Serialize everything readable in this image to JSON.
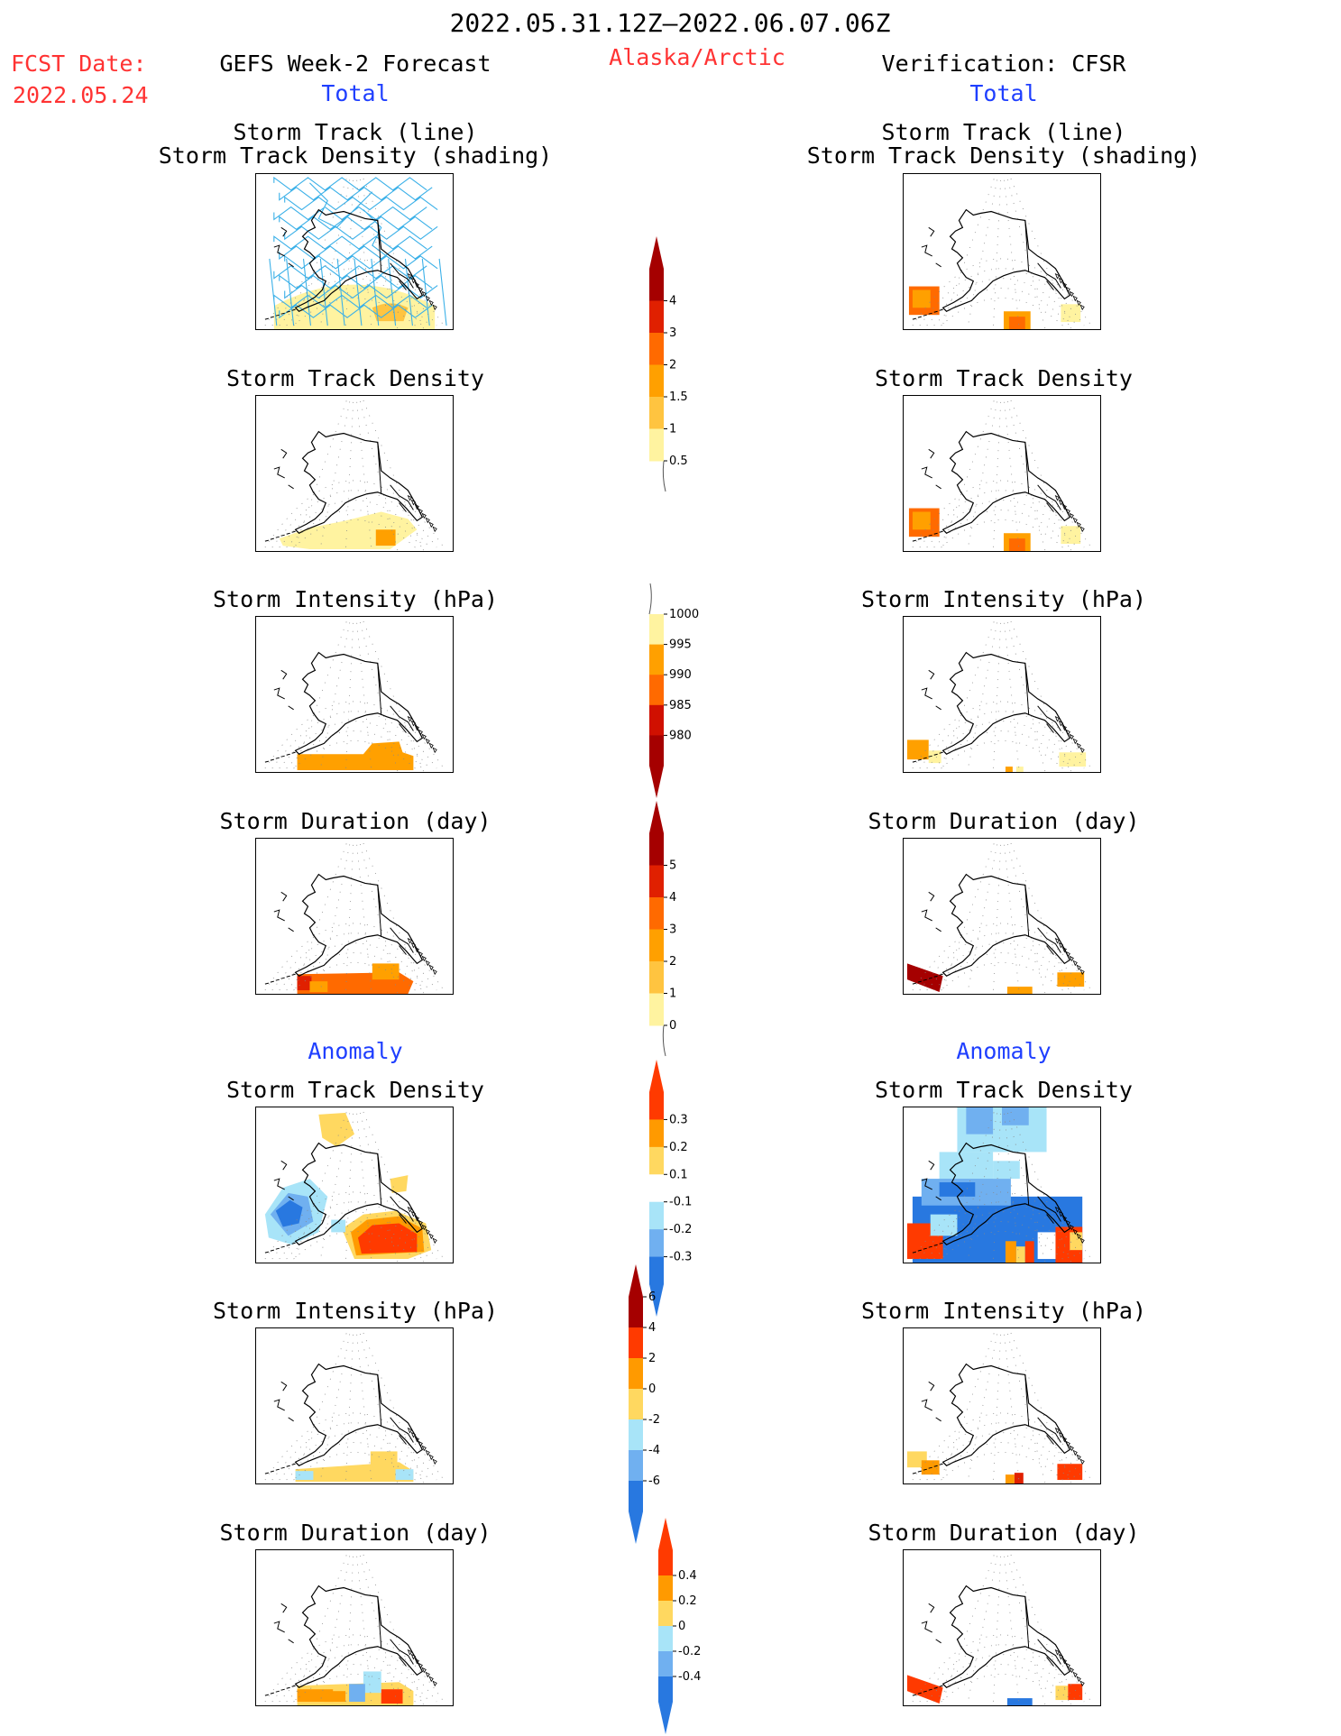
{
  "header": {
    "date_range": "2022.05.31.12Z–2022.06.07.06Z",
    "fcst_label": "FCST Date:",
    "fcst_date": "2022.05.24",
    "left_title": "GEFS Week-2 Forecast",
    "region": "Alaska/Arctic",
    "right_title": "Verification: CFSR"
  },
  "sections": {
    "total": "Total",
    "anomaly": "Anomaly"
  },
  "panel_titles": {
    "track_line": "Storm Track (line)",
    "track_shading": "Storm Track Density (shading)",
    "density": "Storm Track Density",
    "intensity": "Storm Intensity (hPa)",
    "duration": "Storm Duration (day)"
  },
  "colorbars": {
    "density_total": {
      "labels": [
        "4",
        "3",
        "2",
        "1.5",
        "1",
        "0.5"
      ],
      "colors": [
        "#a50000",
        "#e02000",
        "#ff6a00",
        "#ffa000",
        "#ffc440",
        "#fff3a0"
      ]
    },
    "intensity_total": {
      "labels": [
        "1000",
        "995",
        "990",
        "985",
        "980"
      ],
      "colors": [
        "#fff3a0",
        "#ffa000",
        "#ff6a00",
        "#d01000",
        "#a50000"
      ]
    },
    "duration_total": {
      "labels": [
        "5",
        "4",
        "3",
        "2",
        "1",
        "0"
      ],
      "colors": [
        "#a50000",
        "#e02000",
        "#ff6a00",
        "#ffa000",
        "#ffc440",
        "#fff3a0"
      ]
    },
    "density_anom": {
      "labels": [
        "0.3",
        "0.2",
        "0.1",
        "-0.1",
        "-0.2",
        "-0.3"
      ],
      "colors": [
        "#ff3a00",
        "#ff9a00",
        "#ffd860",
        "#ffffff",
        "#a8e4f8",
        "#70b0f0",
        "#2878e0"
      ]
    },
    "intensity_anom": {
      "labels": [
        "6",
        "4",
        "2",
        "0",
        "-2",
        "-4",
        "-6"
      ],
      "colors": [
        "#a50000",
        "#ff3a00",
        "#ff9a00",
        "#ffd860",
        "#a8e4f8",
        "#70b0f0",
        "#2878e0"
      ]
    },
    "duration_anom": {
      "labels": [
        "0.4",
        "0.2",
        "0",
        "-0.2",
        "-0.4"
      ],
      "colors": [
        "#ff3a00",
        "#ff9a00",
        "#ffd860",
        "#a8e4f8",
        "#70b0f0",
        "#2878e0"
      ]
    }
  }
}
